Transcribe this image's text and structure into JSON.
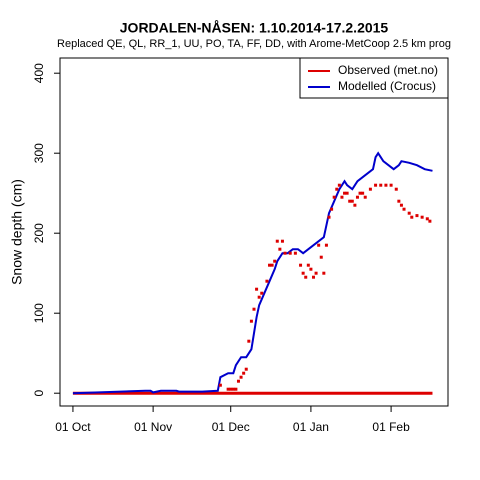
{
  "chart_data": {
    "type": "line",
    "title": "JORDALEN-NÅSEN: 1.10.2014-17.2.2015",
    "subtitle": "Replaced QE, QL, RR_1, UU, PO, TA, FF, DD,  with Arome-MetCoop 2.5 km prog",
    "y_label": "Snow depth (cm)",
    "xlim": [
      -5,
      145
    ],
    "ylim": [
      -16,
      419
    ],
    "xticks": [
      {
        "value": 0,
        "label": "01 Oct"
      },
      {
        "value": 31,
        "label": "01 Nov"
      },
      {
        "value": 61,
        "label": "01 Dec"
      },
      {
        "value": 92,
        "label": "01 Jan"
      },
      {
        "value": 123,
        "label": "01 Feb"
      }
    ],
    "yticks": [
      0,
      100,
      200,
      300,
      400
    ],
    "legend": "top-right",
    "series": [
      {
        "name": "Observed (met.no)",
        "color": "#dd0000",
        "x": [
          57,
          60,
          61,
          62,
          63,
          64,
          65,
          66,
          67,
          68,
          69,
          70,
          71,
          72,
          73,
          75,
          76,
          77,
          78,
          79,
          80,
          81,
          82,
          84,
          86,
          88,
          89,
          90,
          91,
          92,
          93,
          94,
          95,
          96,
          97,
          98,
          99,
          100,
          101,
          102,
          103,
          104,
          105,
          106,
          107,
          108,
          109,
          110,
          111,
          112,
          113,
          115,
          117,
          119,
          121,
          123,
          125,
          126,
          127,
          128,
          130,
          131,
          133,
          135,
          137,
          138
        ],
        "values": [
          10,
          5,
          5,
          5,
          5,
          15,
          20,
          25,
          30,
          65,
          90,
          105,
          130,
          120,
          125,
          140,
          160,
          160,
          165,
          190,
          180,
          190,
          175,
          175,
          175,
          160,
          150,
          145,
          160,
          155,
          145,
          150,
          185,
          170,
          150,
          185,
          220,
          230,
          245,
          255,
          260,
          245,
          250,
          250,
          240,
          240,
          235,
          245,
          250,
          250,
          245,
          255,
          260,
          260,
          260,
          260,
          255,
          240,
          235,
          230,
          225,
          220,
          222,
          220,
          218,
          215
        ]
      },
      {
        "name": "Modelled (Crocus)",
        "color": "#0000cc",
        "x": [
          0,
          28,
          30,
          31,
          34,
          40,
          41,
          50,
          56,
          57,
          60,
          62,
          63,
          65,
          67,
          69,
          70,
          71,
          72,
          74,
          76,
          78,
          79,
          81,
          83,
          85,
          87,
          89,
          91,
          93,
          95,
          97,
          99,
          101,
          103,
          105,
          106,
          108,
          110,
          112,
          114,
          116,
          117,
          118,
          120,
          122,
          124,
          126,
          127,
          130,
          133,
          136,
          139
        ],
        "values": [
          0,
          3,
          3,
          1,
          3,
          3,
          2,
          2,
          3,
          20,
          25,
          25,
          35,
          45,
          45,
          55,
          75,
          95,
          110,
          125,
          140,
          155,
          165,
          175,
          175,
          180,
          180,
          175,
          180,
          185,
          190,
          195,
          225,
          240,
          255,
          265,
          260,
          255,
          265,
          270,
          275,
          280,
          295,
          300,
          290,
          285,
          280,
          285,
          290,
          288,
          285,
          280,
          278
        ]
      }
    ]
  }
}
